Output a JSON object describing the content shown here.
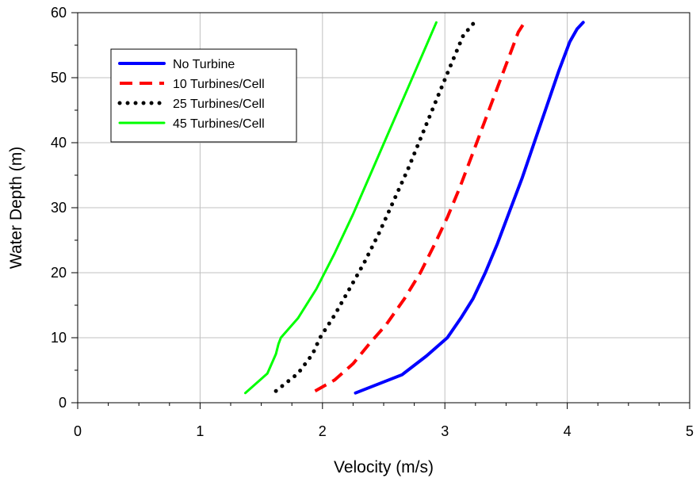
{
  "chart_data": {
    "type": "line",
    "title": "",
    "xlabel": "Velocity (m/s)",
    "ylabel": "Water Depth (m)",
    "xlim": [
      0,
      5
    ],
    "ylim": [
      0,
      60
    ],
    "xticks": [
      0,
      1,
      2,
      3,
      4,
      5
    ],
    "yticks": [
      0,
      10,
      20,
      30,
      40,
      50,
      60
    ],
    "xtick_labels": [
      "0",
      "1",
      "2",
      "3",
      "4",
      "5"
    ],
    "ytick_labels": [
      "0",
      "10",
      "20",
      "30",
      "40",
      "50",
      "60"
    ],
    "grid": true,
    "legend_position": "top-left",
    "series": [
      {
        "name": "No Turbine",
        "color": "#0000ff",
        "style": "solid",
        "x": [
          2.27,
          2.65,
          2.85,
          3.02,
          3.13,
          3.23,
          3.33,
          3.43,
          3.53,
          3.63,
          3.73,
          3.83,
          3.93,
          4.02,
          4.08,
          4.13
        ],
        "y": [
          1.5,
          4.3,
          7.2,
          10,
          13,
          16,
          20,
          24.5,
          29.5,
          34.5,
          40,
          45.5,
          51,
          55.5,
          57.5,
          58.5
        ]
      },
      {
        "name": "10 Turbines/Cell",
        "color": "#ff0000",
        "style": "dashed",
        "x": [
          1.94,
          2.1,
          2.25,
          2.38,
          2.52,
          2.67,
          2.8,
          2.92,
          3.02,
          3.12,
          3.22,
          3.32,
          3.42,
          3.52,
          3.6,
          3.65
        ],
        "y": [
          1.8,
          3.5,
          6,
          9,
          12,
          16,
          20,
          24.5,
          28.5,
          33,
          38,
          43,
          48,
          53,
          57,
          58.5
        ]
      },
      {
        "name": "25 Turbines/Cell",
        "color": "#000000",
        "style": "dotted",
        "x": [
          1.62,
          1.8,
          1.92,
          1.98,
          2.1,
          2.22,
          2.34,
          2.46,
          2.58,
          2.7,
          2.82,
          2.94,
          3.05,
          3.15,
          3.24
        ],
        "y": [
          1.8,
          4.5,
          7.5,
          10,
          13.5,
          17.5,
          21.5,
          26,
          31,
          36,
          41.5,
          47,
          52,
          56.5,
          58.5
        ]
      },
      {
        "name": "45 Turbines/Cell",
        "color": "#00ff00",
        "style": "solid",
        "x": [
          1.37,
          1.55,
          1.62,
          1.64,
          1.66,
          1.8,
          1.95,
          2.1,
          2.25,
          2.4,
          2.55,
          2.7,
          2.85,
          2.93
        ],
        "y": [
          1.5,
          4.5,
          7.5,
          9,
          10,
          13,
          17.5,
          23,
          29,
          35.5,
          42,
          48.5,
          55,
          58.5
        ]
      }
    ]
  }
}
